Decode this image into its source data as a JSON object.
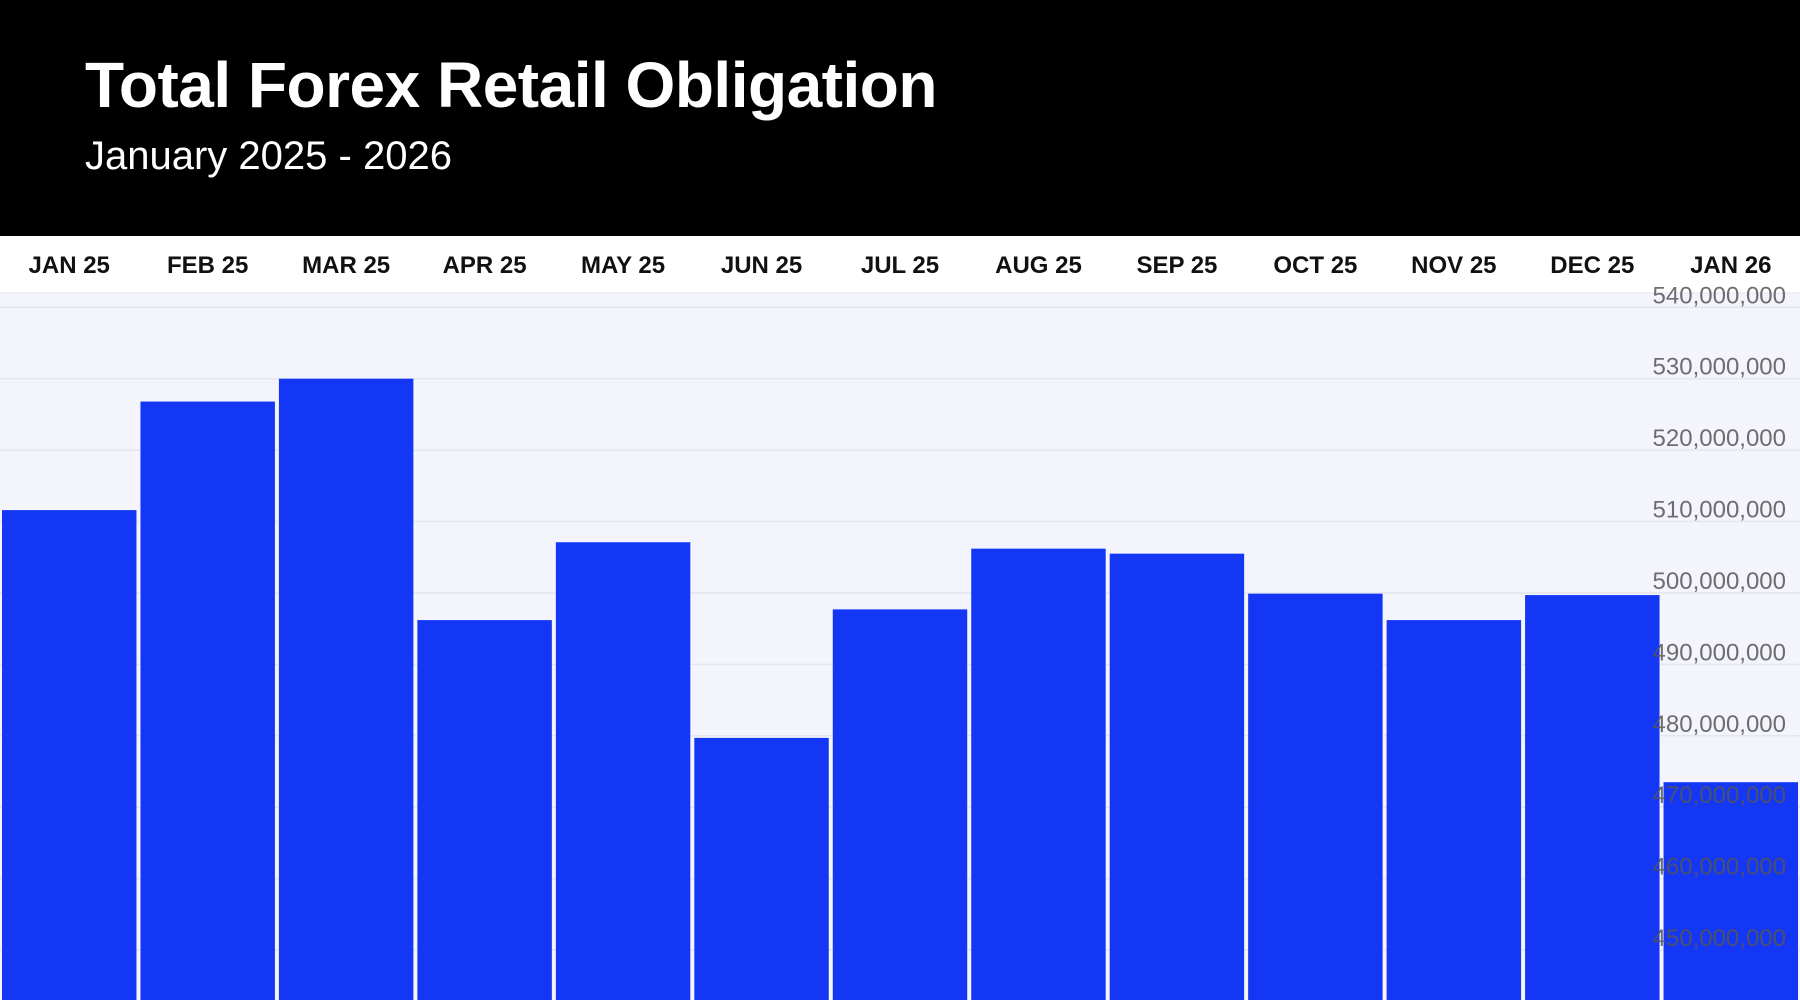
{
  "header": {
    "title": "Total Forex Retail Obligation",
    "subtitle": "January 2025 - 2026"
  },
  "colors": {
    "bar": "#1437f5",
    "plot_background": "#f4f5fc",
    "header_background": "#000000",
    "gridline": "#e4e6ef",
    "axis_label": "#555555",
    "category_label": "#111111"
  },
  "chart_data": {
    "type": "bar",
    "title": "Total Forex Retail Obligation",
    "subtitle": "January 2025 - 2026",
    "categories": [
      "JAN 25",
      "FEB 25",
      "MAR 25",
      "APR 25",
      "MAY 25",
      "JUN 25",
      "JUL 25",
      "AUG 25",
      "SEP 25",
      "OCT 25",
      "NOV 25",
      "DEC 25",
      "JAN 26"
    ],
    "values": [
      511600000,
      526800000,
      530000000,
      496200000,
      507100000,
      479700000,
      497700000,
      506200000,
      505500000,
      499900000,
      496200000,
      499700000,
      473500000
    ],
    "ylim": [
      443000000,
      542000000
    ],
    "yticks": [
      450000000,
      460000000,
      470000000,
      480000000,
      490000000,
      500000000,
      510000000,
      520000000,
      530000000,
      540000000
    ],
    "ytick_labels": [
      "450,000,000",
      "460,000,000",
      "470,000,000",
      "480,000,000",
      "490,000,000",
      "500,000,000",
      "510,000,000",
      "520,000,000",
      "530,000,000",
      "540,000,000"
    ],
    "xlabel": "",
    "ylabel": "",
    "category_axis_position": "top",
    "value_axis_position": "right",
    "grid": true,
    "legend": "none"
  }
}
